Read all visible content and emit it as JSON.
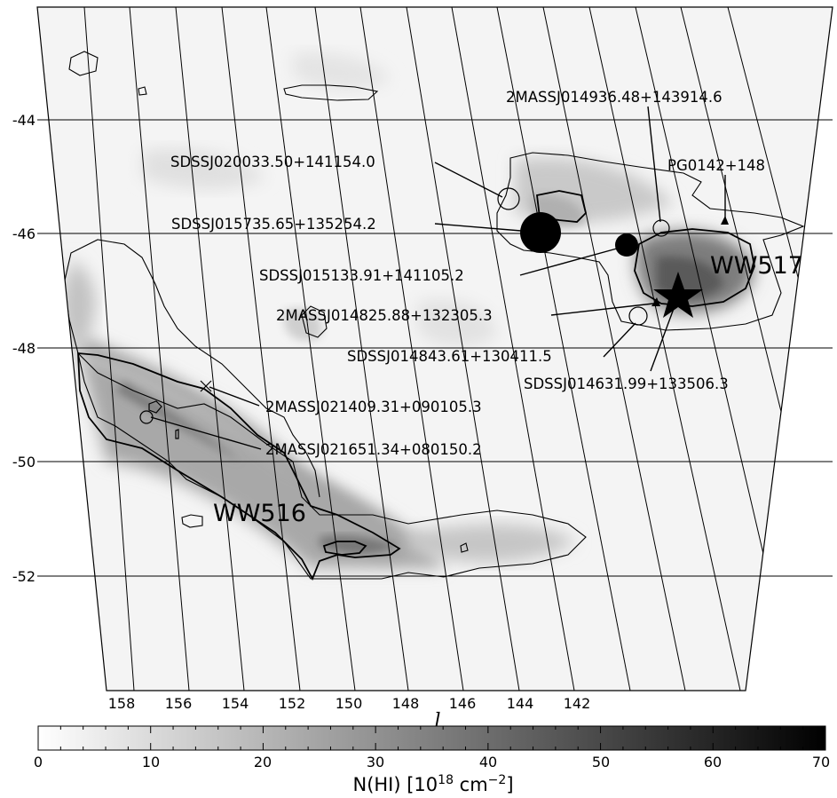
{
  "map": {
    "lon_ticks": [
      "158",
      "156",
      "154",
      "152",
      "150",
      "148",
      "146",
      "144",
      "142"
    ],
    "lat_ticks": [
      "-44",
      "-46",
      "-48",
      "-50",
      "-52"
    ],
    "xlabel": "l",
    "regions": {
      "ww516": "WW516",
      "ww517": "WW517"
    },
    "sources": {
      "s1": "SDSSJ020033.50+141154.0",
      "s2": "SDSSJ015735.65+135254.2",
      "s3": "SDSSJ015133.91+141105.2",
      "s4": "2MASSJ014825.88+132305.3",
      "s5": "SDSSJ014843.61+130411.5",
      "s6": "SDSSJ014631.99+133506.3",
      "s7": "2MASSJ014936.48+143914.6",
      "s8": "PG0142+148",
      "s9": "2MASSJ021409.31+090105.3",
      "s10": "2MASSJ021651.34+080150.2"
    }
  },
  "colorbar": {
    "ticks": [
      "0",
      "10",
      "20",
      "30",
      "40",
      "50",
      "60",
      "70"
    ],
    "title_main": "N(HI)  [10",
    "title_exp1": "18",
    "title_mid": " cm",
    "title_exp2": "−2",
    "title_end": "]",
    "range": [
      0,
      70
    ],
    "colors": {
      "low": "#ffffff",
      "high": "#000000"
    }
  }
}
